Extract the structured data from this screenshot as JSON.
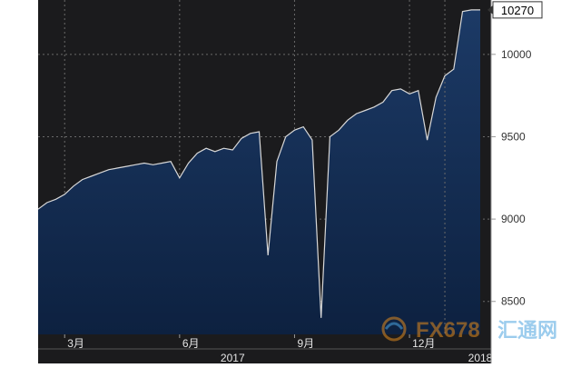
{
  "chart_data": {
    "type": "area",
    "title": "",
    "xlabel": "",
    "ylabel": "",
    "ylim": [
      8300,
      10330
    ],
    "y_ticks": [
      8500,
      9000,
      9500,
      10000
    ],
    "last_value_label": "10270",
    "grid": true,
    "x_tick_labels": [
      {
        "label": "3月",
        "index": 3
      },
      {
        "label": "6月",
        "index": 16
      },
      {
        "label": "9月",
        "index": 29
      },
      {
        "label": "12月",
        "index": 42
      }
    ],
    "year_labels": [
      {
        "label": "2017",
        "index": 22
      },
      {
        "label": "2018",
        "index": 50
      }
    ],
    "year_divider_index": 46,
    "series": [
      {
        "values": [
          9060,
          9100,
          9120,
          9150,
          9200,
          9240,
          9260,
          9280,
          9300,
          9310,
          9320,
          9330,
          9340,
          9330,
          9340,
          9350,
          9250,
          9340,
          9400,
          9430,
          9410,
          9430,
          9420,
          9490,
          9520,
          9530,
          8780,
          9350,
          9500,
          9540,
          9560,
          9480,
          8400,
          9500,
          9540,
          9600,
          9640,
          9660,
          9680,
          9710,
          9780,
          9790,
          9760,
          9780,
          9480,
          9740,
          9870,
          9910,
          10260,
          10270,
          10270
        ]
      }
    ],
    "colors": {
      "background": "#1b1b1d",
      "fill_top": "#1c3a66",
      "fill_bottom": "#0d2140",
      "line": "#d8d8d8",
      "grid": "#6a6a6a",
      "label_text": "#ffffff",
      "axis_text": "#e6e6e6"
    }
  },
  "watermark": {
    "text": "FX678",
    "cn_text": "汇通网"
  }
}
